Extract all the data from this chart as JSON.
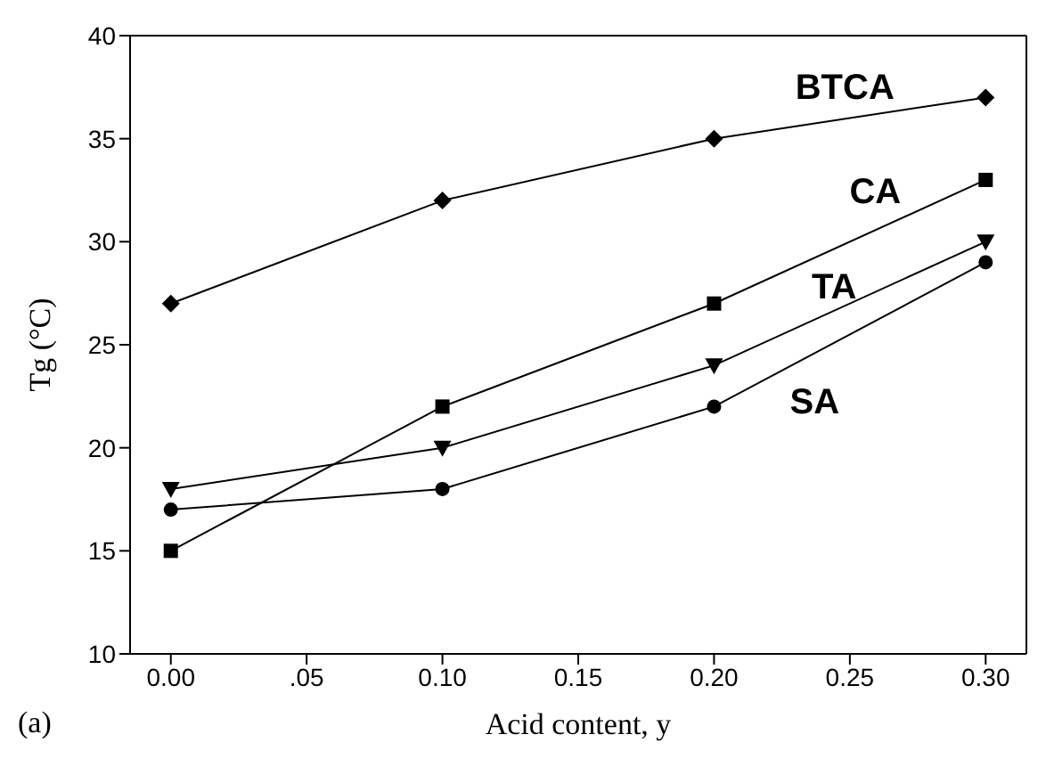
{
  "chart_data": {
    "type": "line",
    "xlabel": "Acid content, y",
    "ylabel": "Tg (°C)",
    "x": [
      0,
      0.1,
      0.2,
      0.3
    ],
    "xlim": [
      -0.015,
      0.315
    ],
    "xticks": [
      {
        "value": 0,
        "label": "0.00"
      },
      {
        "value": 0.05,
        "label": ".05"
      },
      {
        "value": 0.1,
        "label": "0.10"
      },
      {
        "value": 0.15,
        "label": "0.15"
      },
      {
        "value": 0.2,
        "label": "0.20"
      },
      {
        "value": 0.25,
        "label": "0.25"
      },
      {
        "value": 0.3,
        "label": "0.30"
      }
    ],
    "ylim": [
      10,
      40
    ],
    "yticks": [
      10,
      15,
      20,
      25,
      30,
      35,
      40
    ],
    "grid": false,
    "legend": false,
    "line_style": "solid",
    "series": [
      {
        "name": "BTCA",
        "color": "#000000",
        "marker": "diamond",
        "values": [
          27,
          32,
          35,
          37
        ]
      },
      {
        "name": "CA",
        "color": "#000000",
        "marker": "square",
        "values": [
          15,
          22,
          27,
          33
        ]
      },
      {
        "name": "TA",
        "color": "#000000",
        "marker": "triangle_down",
        "values": [
          18,
          20,
          24,
          30
        ]
      },
      {
        "name": "SA",
        "color": "#000000",
        "marker": "circle",
        "values": [
          17,
          18,
          22,
          29
        ]
      }
    ],
    "annotations": [
      "(a)"
    ]
  }
}
